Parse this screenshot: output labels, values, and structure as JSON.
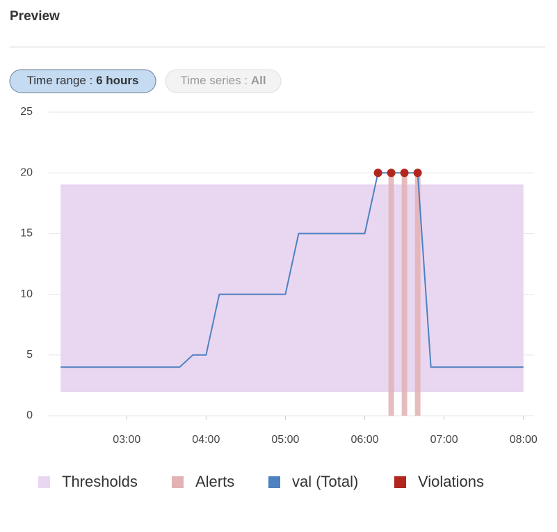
{
  "header": {
    "title": "Preview"
  },
  "filters": [
    {
      "label": "Time range :",
      "value": "6 hours",
      "selected": true
    },
    {
      "label": "Time series :",
      "value": "All",
      "selected": false
    }
  ],
  "chart_data": {
    "type": "line",
    "xlim": [
      121,
      488
    ],
    "xticks": [
      {
        "value": 180,
        "label": "03:00"
      },
      {
        "value": 240,
        "label": "04:00"
      },
      {
        "value": 300,
        "label": "05:00"
      },
      {
        "value": 360,
        "label": "06:00"
      },
      {
        "value": 420,
        "label": "07:00"
      },
      {
        "value": 480,
        "label": "08:00"
      }
    ],
    "ylim": [
      0,
      25
    ],
    "yticks": [
      0,
      5,
      10,
      15,
      20,
      25
    ],
    "grid": true,
    "series": [
      {
        "name": "Thresholds",
        "type": "band",
        "color": "#e9d7f1",
        "x": [
          130,
          480
        ],
        "values": [
          19,
          19
        ],
        "base": [
          2,
          2
        ]
      },
      {
        "name": "Alerts",
        "type": "bar",
        "color": "#e2b2b4",
        "x": [
          380,
          390,
          400
        ],
        "values": [
          20,
          20,
          20
        ]
      },
      {
        "name": "val (Total)",
        "type": "line",
        "color": "#4e81c0",
        "x": [
          130,
          220,
          230,
          240,
          250,
          300,
          310,
          360,
          370,
          400,
          410,
          480
        ],
        "values": [
          4,
          4,
          5,
          5,
          10,
          10,
          15,
          15,
          20,
          20,
          4,
          4
        ]
      },
      {
        "name": "Violations",
        "type": "scatter",
        "color": "#b3261e",
        "x": [
          370,
          380,
          390,
          400
        ],
        "values": [
          20,
          20,
          20,
          20
        ]
      }
    ]
  }
}
